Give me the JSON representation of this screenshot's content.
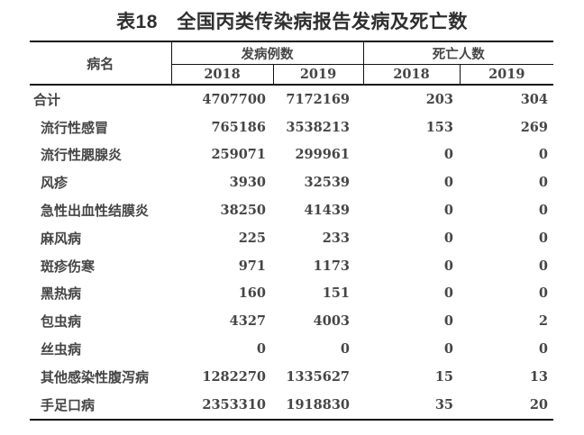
{
  "title": "表18　全国丙类传染病报告发病及死亡数",
  "table": {
    "headers": {
      "disease": "病名",
      "cases_group": "发病例数",
      "deaths_group": "死亡人数",
      "cases_2018": "2018",
      "cases_2019": "2019",
      "deaths_2018": "2018",
      "deaths_2019": "2019"
    },
    "rows": [
      {
        "name": "合计",
        "indent": false,
        "values": [
          "4707700",
          "7172169",
          "203",
          "304"
        ]
      },
      {
        "name": "流行性感冒",
        "indent": true,
        "values": [
          "765186",
          "3538213",
          "153",
          "269"
        ]
      },
      {
        "name": "流行性腮腺炎",
        "indent": true,
        "values": [
          "259071",
          "299961",
          "0",
          "0"
        ]
      },
      {
        "name": "风疹",
        "indent": true,
        "values": [
          "3930",
          "32539",
          "0",
          "0"
        ]
      },
      {
        "name": "急性出血性结膜炎",
        "indent": true,
        "values": [
          "38250",
          "41439",
          "0",
          "0"
        ]
      },
      {
        "name": "麻风病",
        "indent": true,
        "values": [
          "225",
          "233",
          "0",
          "0"
        ]
      },
      {
        "name": "斑疹伤寒",
        "indent": true,
        "values": [
          "971",
          "1173",
          "0",
          "0"
        ]
      },
      {
        "name": "黑热病",
        "indent": true,
        "values": [
          "160",
          "151",
          "0",
          "0"
        ]
      },
      {
        "name": "包虫病",
        "indent": true,
        "values": [
          "4327",
          "4003",
          "0",
          "2"
        ]
      },
      {
        "name": "丝虫病",
        "indent": true,
        "values": [
          "0",
          "0",
          "0",
          "0"
        ]
      },
      {
        "name": "其他感染性腹泻病",
        "indent": true,
        "values": [
          "1282270",
          "1335627",
          "15",
          "13"
        ]
      },
      {
        "name": "手足口病",
        "indent": true,
        "values": [
          "2353310",
          "1918830",
          "35",
          "20"
        ]
      }
    ]
  },
  "colors": {
    "text": "#454545",
    "title_text": "#2f2f2f",
    "border": "#111111",
    "background": "#ffffff"
  }
}
